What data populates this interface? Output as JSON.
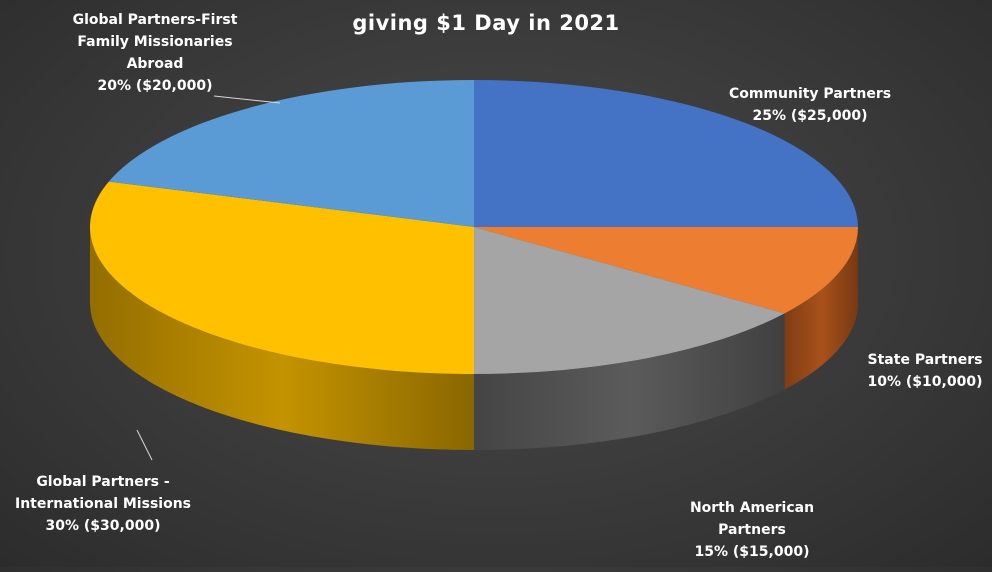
{
  "chart_data": {
    "type": "pie",
    "style": "3d",
    "title_partial": "giving $1 Day in 2021",
    "series": [
      {
        "name": "Community Partners",
        "percent": 25,
        "amount": 25000,
        "label_lines": [
          "Community Partners",
          "25% ($25,000)"
        ],
        "color": "#4472c4",
        "side_color": "#2f528f"
      },
      {
        "name": "State Partners",
        "percent": 10,
        "amount": 10000,
        "label_lines": [
          "State Partners",
          "10% ($10,000)"
        ],
        "color": "#ed7d31",
        "side_color": "#a9511a"
      },
      {
        "name": "North American Partners",
        "percent": 15,
        "amount": 15000,
        "label_lines": [
          "North American",
          "Partners",
          "15% ($15,000)"
        ],
        "color": "#a5a5a5",
        "side_color": "#5b5b5b"
      },
      {
        "name": "Global Partners - International Missions",
        "percent": 30,
        "amount": 30000,
        "label_lines": [
          "Global Partners -",
          "International Missions",
          "30% ($30,000)"
        ],
        "color": "#ffc000",
        "side_color": "#c49300"
      },
      {
        "name": "Global Partners-First Family Missionaries Abroad",
        "percent": 20,
        "amount": 20000,
        "label_lines": [
          "Global Partners-First",
          "Family Missionaries",
          "Abroad",
          "20% ($20,000)"
        ],
        "color": "#5b9bd5",
        "side_color": "#3a6f9f"
      }
    ],
    "legend": "none",
    "data_labels": "outside, category name + percent + value"
  }
}
